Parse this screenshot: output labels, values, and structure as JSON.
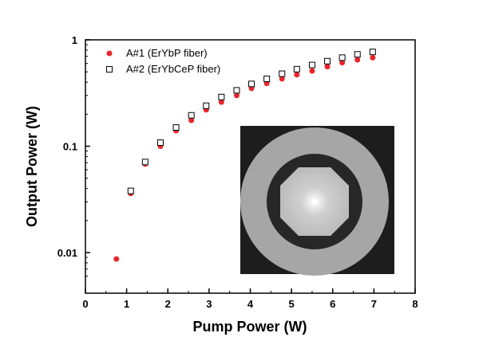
{
  "chart_data": {
    "type": "scatter",
    "xlabel": "Pump Power (W)",
    "ylabel": "Output Power (W)",
    "xlim": [
      0,
      8
    ],
    "ylim": [
      0.005,
      1
    ],
    "y_scale": "log",
    "x_ticks": [
      "0",
      "1",
      "2",
      "3",
      "4",
      "5",
      "6",
      "7",
      "8"
    ],
    "y_ticks": [
      "0.01",
      "0.1",
      "1"
    ],
    "grid": false,
    "legend_position": "top-left",
    "inset": "fiber cross-section micrograph",
    "series": [
      {
        "name": "A#1 (ErYbP fiber)",
        "marker": "filled-circle",
        "color": "#e8262b",
        "x": [
          0.75,
          1.1,
          1.45,
          1.82,
          2.2,
          2.57,
          2.93,
          3.3,
          3.67,
          4.03,
          4.4,
          4.77,
          5.13,
          5.5,
          5.87,
          6.23,
          6.6,
          6.97
        ],
        "y": [
          0.0087,
          0.036,
          0.068,
          0.1,
          0.14,
          0.175,
          0.22,
          0.26,
          0.3,
          0.35,
          0.39,
          0.43,
          0.47,
          0.51,
          0.56,
          0.61,
          0.65,
          0.68
        ]
      },
      {
        "name": "A#2 (ErYbCeP fiber)",
        "marker": "open-square",
        "color": "#000000",
        "x": [
          1.1,
          1.45,
          1.82,
          2.2,
          2.57,
          2.93,
          3.3,
          3.67,
          4.03,
          4.4,
          4.77,
          5.13,
          5.5,
          5.87,
          6.23,
          6.6,
          6.97
        ],
        "y": [
          0.038,
          0.071,
          0.108,
          0.15,
          0.195,
          0.24,
          0.29,
          0.335,
          0.385,
          0.43,
          0.48,
          0.53,
          0.58,
          0.63,
          0.68,
          0.73,
          0.77
        ]
      }
    ]
  }
}
